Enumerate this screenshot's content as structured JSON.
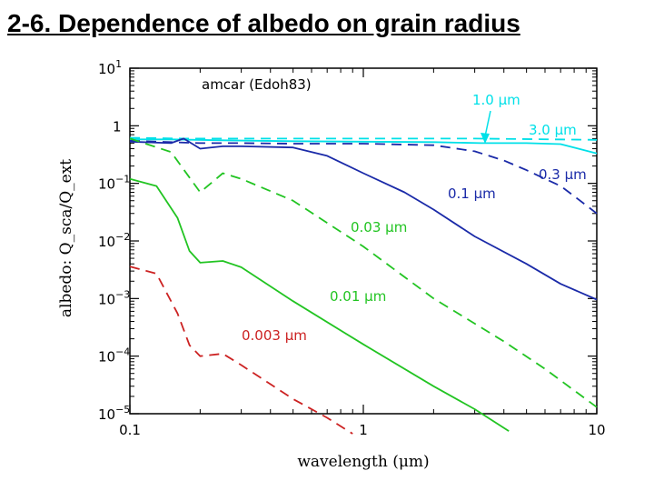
{
  "slide": {
    "title": "2-6. Dependence of albedo on grain radius "
  },
  "chart_data": {
    "type": "line",
    "title": "amcar (Edoh83)",
    "xlabel": "wavelength (μm)",
    "ylabel": "albedo: Q_sca/Q_ext",
    "xscale": "log",
    "yscale": "log",
    "xlim": [
      0.1,
      10
    ],
    "ylim": [
      1e-05,
      10
    ],
    "x_ticks": [
      {
        "value": 0.1,
        "label": "0.1"
      },
      {
        "value": 1,
        "label": "1"
      },
      {
        "value": 10,
        "label": "10"
      }
    ],
    "y_ticks": [
      {
        "value": 10,
        "base": "10",
        "exp": "1"
      },
      {
        "value": 1,
        "base": "1",
        "exp": ""
      },
      {
        "value": 0.1,
        "base": "10",
        "exp": "−1"
      },
      {
        "value": 0.01,
        "base": "10",
        "exp": "−2"
      },
      {
        "value": 0.001,
        "base": "10",
        "exp": "−3"
      },
      {
        "value": 0.0001,
        "base": "10",
        "exp": "−4"
      },
      {
        "value": 1e-05,
        "base": "10",
        "exp": "−5"
      }
    ],
    "grid": false,
    "series": [
      {
        "name": "3.0 μm",
        "color": "#00e0e8",
        "dash": "dashed",
        "points": [
          [
            0.1,
            0.62
          ],
          [
            0.17,
            0.6
          ],
          [
            0.3,
            0.6
          ],
          [
            1,
            0.6
          ],
          [
            3,
            0.6
          ],
          [
            10,
            0.57
          ]
        ]
      },
      {
        "name": "1.0 μm",
        "color": "#00e0e8",
        "dash": "solid",
        "points": [
          [
            0.1,
            0.58
          ],
          [
            0.15,
            0.58
          ],
          [
            0.25,
            0.56
          ],
          [
            0.5,
            0.54
          ],
          [
            1,
            0.53
          ],
          [
            2,
            0.52
          ],
          [
            3.2,
            0.5
          ],
          [
            5,
            0.5
          ],
          [
            7,
            0.48
          ],
          [
            10,
            0.33
          ]
        ]
      },
      {
        "name": "0.3 μm",
        "color": "#1a2aa8",
        "dash": "dashed",
        "points": [
          [
            0.1,
            0.55
          ],
          [
            0.15,
            0.52
          ],
          [
            0.2,
            0.5
          ],
          [
            0.3,
            0.5
          ],
          [
            0.5,
            0.49
          ],
          [
            1,
            0.49
          ],
          [
            2,
            0.46
          ],
          [
            3,
            0.36
          ],
          [
            4,
            0.25
          ],
          [
            5,
            0.17
          ],
          [
            6,
            0.12
          ],
          [
            7,
            0.09
          ],
          [
            8,
            0.06
          ],
          [
            10,
            0.03
          ]
        ]
      },
      {
        "name": "0.1 μm",
        "color": "#1a2aa8",
        "dash": "solid",
        "points": [
          [
            0.1,
            0.53
          ],
          [
            0.15,
            0.5
          ],
          [
            0.17,
            0.6
          ],
          [
            0.2,
            0.4
          ],
          [
            0.25,
            0.44
          ],
          [
            0.3,
            0.44
          ],
          [
            0.5,
            0.42
          ],
          [
            0.7,
            0.3
          ],
          [
            1,
            0.15
          ],
          [
            1.5,
            0.07
          ],
          [
            2,
            0.035
          ],
          [
            3,
            0.012
          ],
          [
            5,
            0.004
          ],
          [
            7,
            0.0018
          ],
          [
            10,
            0.00096
          ]
        ]
      },
      {
        "name": "0.03 μm",
        "color": "#22c422",
        "dash": "dashed",
        "points": [
          [
            0.1,
            0.6
          ],
          [
            0.15,
            0.35
          ],
          [
            0.2,
            0.07
          ],
          [
            0.25,
            0.15
          ],
          [
            0.3,
            0.12
          ],
          [
            0.5,
            0.05
          ],
          [
            1,
            0.008
          ],
          [
            2,
            0.001
          ],
          [
            4,
            0.00018
          ],
          [
            6,
            6e-05
          ],
          [
            10,
            1.3e-05
          ]
        ]
      },
      {
        "name": "0.01 μm",
        "color": "#22c422",
        "dash": "solid",
        "points": [
          [
            0.1,
            0.12
          ],
          [
            0.13,
            0.09
          ],
          [
            0.16,
            0.025
          ],
          [
            0.18,
            0.0067
          ],
          [
            0.2,
            0.0042
          ],
          [
            0.25,
            0.0045
          ],
          [
            0.3,
            0.0035
          ],
          [
            0.5,
            0.0009
          ],
          [
            1,
            0.00016
          ],
          [
            2,
            3e-05
          ],
          [
            3,
            1.2e-05
          ],
          [
            4.2,
            5e-06
          ]
        ]
      },
      {
        "name": "0.003 μm",
        "color": "#cc2222",
        "dash": "dashed",
        "points": [
          [
            0.1,
            0.0036
          ],
          [
            0.13,
            0.0027
          ],
          [
            0.16,
            0.00055
          ],
          [
            0.18,
            0.000155
          ],
          [
            0.2,
            0.0001
          ],
          [
            0.25,
            0.00011
          ],
          [
            0.3,
            7e-05
          ],
          [
            0.5,
            1.8e-05
          ],
          [
            0.7,
            8.5e-06
          ],
          [
            0.9,
            4.5e-06
          ]
        ]
      }
    ],
    "annotations": [
      {
        "text": "1.0 μm",
        "color": "#00e0e8"
      },
      {
        "text": "3.0 μm",
        "color": "#00e0e8"
      },
      {
        "text": "0.3 μm",
        "color": "#1a2aa8"
      },
      {
        "text": "0.1 μm",
        "color": "#1a2aa8"
      },
      {
        "text": "0.03 μm",
        "color": "#22c422"
      },
      {
        "text": "0.01 μm",
        "color": "#22c422"
      },
      {
        "text": "0.003 μm",
        "color": "#cc2222"
      }
    ]
  }
}
